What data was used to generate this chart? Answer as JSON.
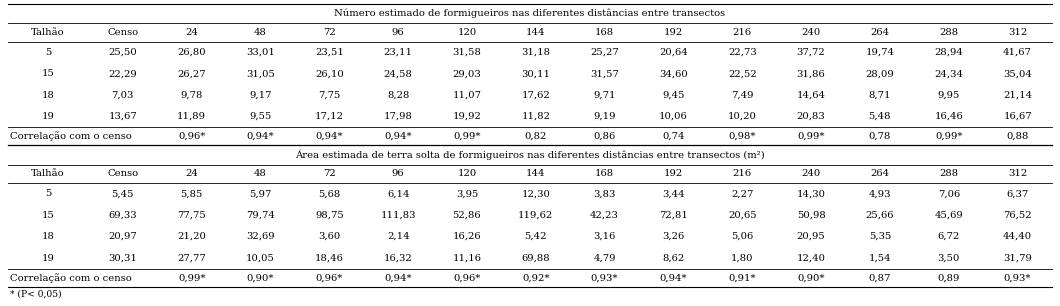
{
  "title1": "Número estimado de formigueiros nas diferentes distâncias entre transectos",
  "title2": "Área estimada de terra solta de formigueiros nas diferentes distâncias entre transectos (m²)",
  "footnote": "* (P< 0,05)",
  "columns": [
    "Talhão",
    "Censo",
    "24",
    "48",
    "72",
    "96",
    "120",
    "144",
    "168",
    "192",
    "216",
    "240",
    "264",
    "288",
    "312"
  ],
  "table1_rows": [
    [
      "5",
      "25,50",
      "26,80",
      "33,01",
      "23,51",
      "23,11",
      "31,58",
      "31,18",
      "25,27",
      "20,64",
      "22,73",
      "37,72",
      "19,74",
      "28,94",
      "41,67"
    ],
    [
      "15",
      "22,29",
      "26,27",
      "31,05",
      "26,10",
      "24,58",
      "29,03",
      "30,11",
      "31,57",
      "34,60",
      "22,52",
      "31,86",
      "28,09",
      "24,34",
      "35,04"
    ],
    [
      "18",
      "7,03",
      "9,78",
      "9,17",
      "7,75",
      "8,28",
      "11,07",
      "17,62",
      "9,71",
      "9,45",
      "7,49",
      "14,64",
      "8,71",
      "9,95",
      "21,14"
    ],
    [
      "19",
      "13,67",
      "11,89",
      "9,55",
      "17,12",
      "17,98",
      "19,92",
      "11,82",
      "9,19",
      "10,06",
      "10,20",
      "20,83",
      "5,48",
      "16,46",
      "16,67"
    ]
  ],
  "table1_corr": [
    "Correlação com o censo",
    "",
    "0,96*",
    "0,94*",
    "0,94*",
    "0,94*",
    "0,99*",
    "0,82",
    "0,86",
    "0,74",
    "0,98*",
    "0,99*",
    "0,78",
    "0,99*",
    "0,88"
  ],
  "table2_rows": [
    [
      "5",
      "5,45",
      "5,85",
      "5,97",
      "5,68",
      "6,14",
      "3,95",
      "12,30",
      "3,83",
      "3,44",
      "2,27",
      "14,30",
      "4,93",
      "7,06",
      "6,37"
    ],
    [
      "15",
      "69,33",
      "77,75",
      "79,74",
      "98,75",
      "111,83",
      "52,86",
      "119,62",
      "42,23",
      "72,81",
      "20,65",
      "50,98",
      "25,66",
      "45,69",
      "76,52"
    ],
    [
      "18",
      "20,97",
      "21,20",
      "32,69",
      "3,60",
      "2,14",
      "16,26",
      "5,42",
      "3,16",
      "3,26",
      "5,06",
      "20,95",
      "5,35",
      "6,72",
      "44,40"
    ],
    [
      "19",
      "30,31",
      "27,77",
      "10,05",
      "18,46",
      "16,32",
      "11,16",
      "69,88",
      "4,79",
      "8,62",
      "1,80",
      "12,40",
      "1,54",
      "3,50",
      "31,79"
    ]
  ],
  "table2_corr": [
    "Correlação com o censo",
    "",
    "0,99*",
    "0,90*",
    "0,96*",
    "0,94*",
    "0,96*",
    "0,92*",
    "0,93*",
    "0,94*",
    "0,91*",
    "0,90*",
    "0,87",
    "0,89",
    "0,93*"
  ],
  "bg_color": "#ffffff",
  "text_color": "#000000",
  "font_size": 7.2,
  "font_family": "serif"
}
